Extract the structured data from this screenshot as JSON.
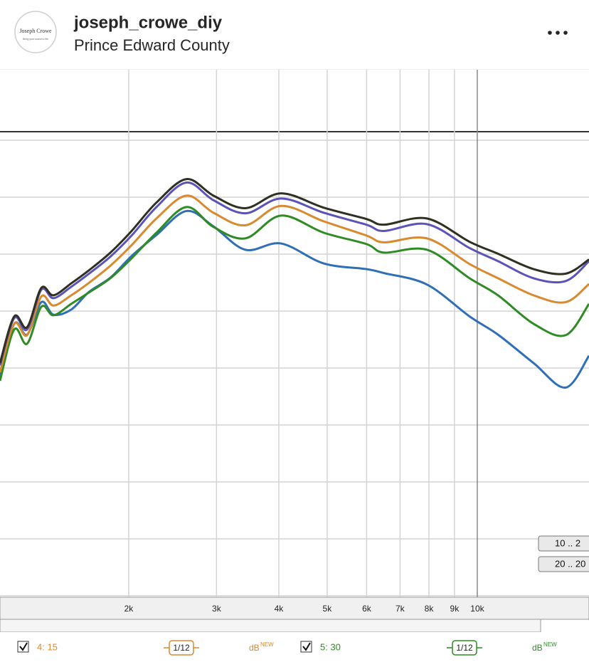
{
  "header": {
    "avatar_name": "Joseph Crowe",
    "avatar_tagline": "Bring your sound to life",
    "username": "joseph_crowe_diy",
    "location": "Prince Edward County"
  },
  "chart_data": {
    "type": "line",
    "xscale": "log",
    "grid": true,
    "xlim": [
      1104,
      16750
    ],
    "ylim": [
      0,
      9.26
    ],
    "xticks": [
      {
        "value": 2000,
        "label": "2k"
      },
      {
        "value": 3000,
        "label": "3k"
      },
      {
        "value": 4000,
        "label": "4k"
      },
      {
        "value": 5000,
        "label": "5k"
      },
      {
        "value": 6000,
        "label": "6k"
      },
      {
        "value": 7000,
        "label": "7k"
      },
      {
        "value": 8000,
        "label": "8k"
      },
      {
        "value": 9000,
        "label": "9k"
      },
      {
        "value": 10000,
        "label": "10k"
      }
    ],
    "x": [
      1104,
      1179,
      1251,
      1336,
      1413,
      1534,
      1665,
      1838,
      2027,
      2274,
      2611,
      2958,
      3428,
      4042,
      4920,
      5994,
      6503,
      7925,
      9650,
      11004,
      12970,
      15030,
      16750
    ],
    "series": [
      {
        "color": "#2f2f22",
        "values": [
          4.11,
          4.93,
          4.74,
          5.43,
          5.3,
          5.51,
          5.74,
          6.05,
          6.43,
          6.93,
          7.34,
          7.05,
          6.83,
          7.09,
          6.84,
          6.64,
          6.54,
          6.65,
          6.24,
          6.03,
          5.76,
          5.68,
          5.93
        ]
      },
      {
        "color": "#5b54b8",
        "values": [
          4.07,
          4.9,
          4.7,
          5.4,
          5.25,
          5.45,
          5.68,
          5.98,
          6.35,
          6.85,
          7.28,
          6.97,
          6.74,
          7.0,
          6.75,
          6.54,
          6.43,
          6.55,
          6.13,
          5.9,
          5.6,
          5.55,
          5.9
        ]
      },
      {
        "name": "4: 15",
        "color": "#d98a2e",
        "values": [
          3.95,
          4.8,
          4.6,
          5.28,
          5.12,
          5.3,
          5.52,
          5.82,
          6.18,
          6.65,
          7.05,
          6.75,
          6.53,
          6.87,
          6.6,
          6.35,
          6.23,
          6.3,
          5.85,
          5.6,
          5.3,
          5.18,
          5.5
        ]
      },
      {
        "name": "5: 30",
        "color": "#2f8b24",
        "values": [
          3.8,
          4.7,
          4.45,
          5.1,
          4.95,
          5.15,
          5.35,
          5.6,
          5.95,
          6.4,
          6.85,
          6.5,
          6.3,
          6.7,
          6.4,
          6.2,
          6.05,
          6.1,
          5.6,
          5.3,
          4.8,
          4.6,
          5.15
        ]
      },
      {
        "color": "#2f6fb6",
        "values": [
          3.86,
          4.8,
          4.61,
          5.18,
          4.96,
          5.05,
          5.36,
          5.61,
          5.99,
          6.36,
          6.78,
          6.51,
          6.1,
          6.21,
          5.86,
          5.76,
          5.69,
          5.49,
          4.93,
          4.61,
          4.11,
          3.68,
          4.24
        ]
      }
    ],
    "buttons": [
      "10 .. 2",
      "20 .. 20"
    ],
    "controls": {
      "fraction": "1/12",
      "unit": "dB",
      "badge": "NEW"
    }
  }
}
